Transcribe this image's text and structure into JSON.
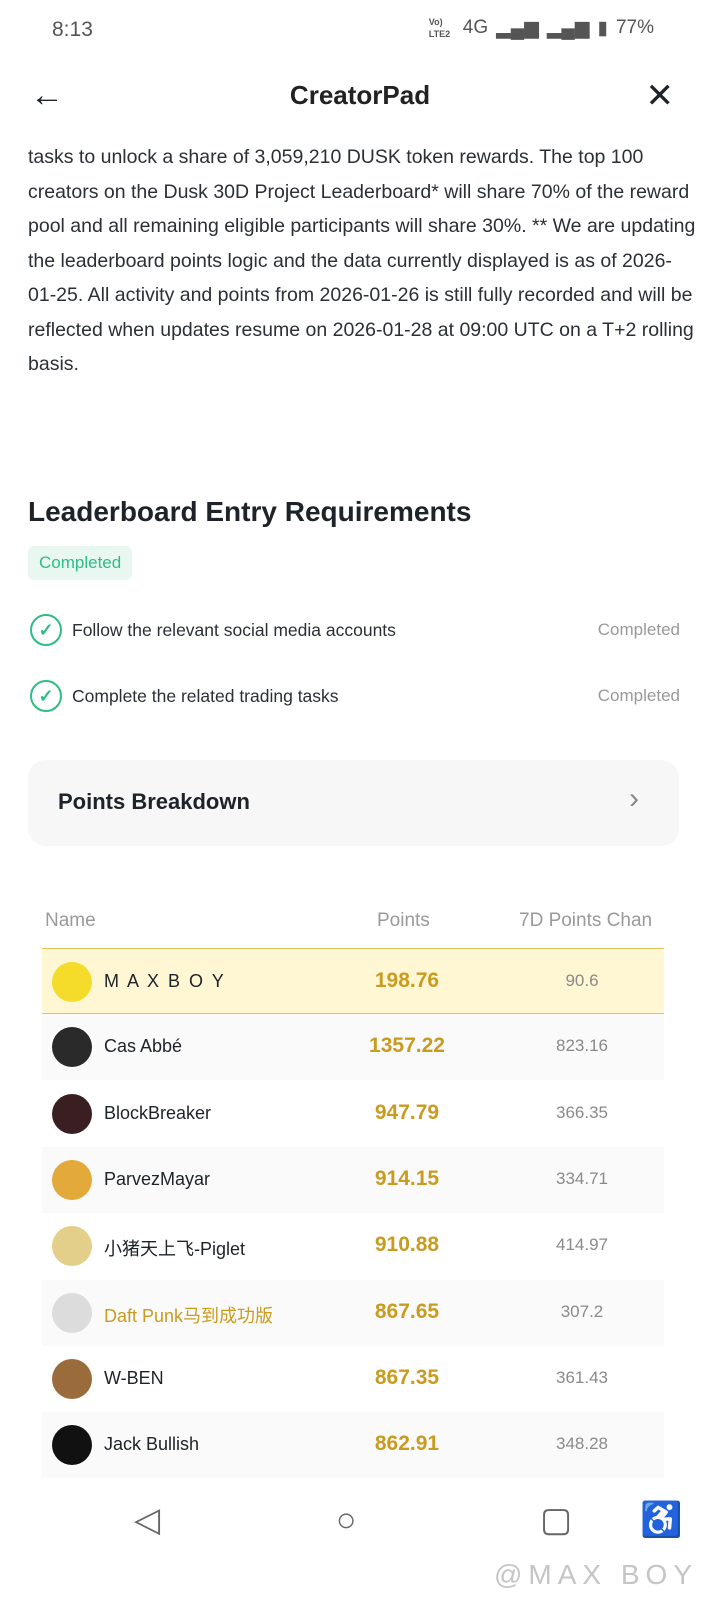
{
  "status_bar": {
    "time": "8:13",
    "volte": "Vo) LTE2",
    "network": "4G",
    "battery": "77%"
  },
  "header": {
    "title": "CreatorPad"
  },
  "description": "tasks to unlock a share of 3,059,210 DUSK token rewards. The top 100 creators on the Dusk 30D Project Leaderboard* will share 70% of the reward pool and all remaining eligible participants will share 30%. ** We are updating the leaderboard points logic and the data currently displayed is as of 2026-01-25. All activity and points from 2026-01-26 is still fully recorded and will be reflected when updates resume on 2026-01-28 at 09:00 UTC on a T+2 rolling basis.",
  "requirements": {
    "title": "Leaderboard Entry Requirements",
    "badge": "Completed",
    "items": [
      {
        "label": "Follow the relevant social media accounts",
        "status": "Completed"
      },
      {
        "label": "Complete the related trading tasks",
        "status": "Completed"
      }
    ]
  },
  "points_breakdown": {
    "label": "Points Breakdown"
  },
  "leaderboard": {
    "columns": [
      "Name",
      "Points",
      "7D Points Chan"
    ],
    "rows": [
      {
        "name": "M A X  B O Y",
        "points": "198.76",
        "change": "90.6",
        "avatar_color": "#f5dc2a"
      },
      {
        "name": "Cas Abbé",
        "points": "1357.22",
        "change": "823.16",
        "avatar_color": "#2a2a2a"
      },
      {
        "name": "BlockBreaker",
        "points": "947.79",
        "change": "366.35",
        "avatar_color": "#3a1f22"
      },
      {
        "name": "ParvezMayar",
        "points": "914.15",
        "change": "334.71",
        "avatar_color": "#e3a93a"
      },
      {
        "name": "小猪天上飞-Piglet",
        "points": "910.88",
        "change": "414.97",
        "avatar_color": "#e4cf8a"
      },
      {
        "name": "Daft Punk马到成功版",
        "points": "867.65",
        "change": "307.2",
        "avatar_color": "#dcdcdc"
      },
      {
        "name": "W-BEN",
        "points": "867.35",
        "change": "361.43",
        "avatar_color": "#9a6c3c"
      },
      {
        "name": "Jack Bullish",
        "points": "862.91",
        "change": "348.28",
        "avatar_color": "#111111"
      }
    ]
  },
  "watermark": "@MAX BOY",
  "colors": {
    "accent_gold": "#c99b1f",
    "success": "#2ebd85",
    "highlight": "#fff6d4"
  }
}
